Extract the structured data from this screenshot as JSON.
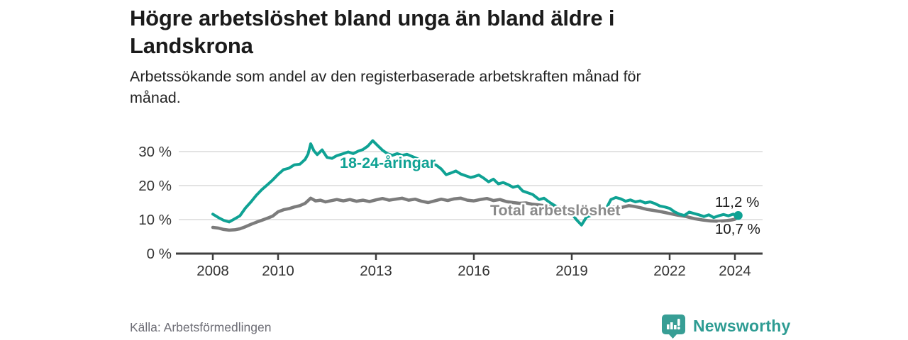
{
  "header": {
    "title_lines": [
      "Högre arbetslöshet bland unga än bland äldre i",
      "Landskrona"
    ],
    "subtitle_lines": [
      "Arbetssökande som andel av den registerbaserade arbetskraften månad för",
      "månad."
    ]
  },
  "footer": {
    "source": "Källa: Arbetsförmedlingen",
    "brand": "Newsworthy"
  },
  "colors": {
    "young_line": "#0fa294",
    "total_line": "#7c7c7c",
    "total_label": "#8a8a8a",
    "brand_teal": "#2f9c93",
    "grid": "#dadada",
    "axis": "#3f3f3f",
    "tick_text": "#333333",
    "end_label_text": "#1b1b1b"
  },
  "chart_data": {
    "type": "line",
    "title": "Högre arbetslöshet bland unga än bland äldre i Landskrona",
    "subtitle": "Arbetssökande som andel av den registerbaserade arbetskraften månad för månad.",
    "xlabel": "",
    "ylabel": "",
    "x_ticks": [
      2008,
      2010,
      2013,
      2016,
      2019,
      2022,
      2024
    ],
    "y_ticks": [
      0,
      10,
      20,
      30
    ],
    "y_tick_suffix": " %",
    "xlim": [
      2006.9,
      2024.9
    ],
    "ylim": [
      0,
      34.5
    ],
    "grid": true,
    "legend_position": "inline",
    "series": [
      {
        "name": "18-24-åringar",
        "color": "#0fa294",
        "stroke_width": 4,
        "inline_label": {
          "text": "18-24-åringar",
          "px": [
            479,
            237
          ]
        },
        "end_label": {
          "text": "11,2 %",
          "px": [
            1008,
            292
          ]
        },
        "end_dot": true,
        "points": [
          [
            2008.0,
            11.6
          ],
          [
            2008.17,
            10.6
          ],
          [
            2008.33,
            9.8
          ],
          [
            2008.5,
            9.3
          ],
          [
            2008.67,
            10.2
          ],
          [
            2008.83,
            11.1
          ],
          [
            2009.0,
            13.4
          ],
          [
            2009.17,
            15.2
          ],
          [
            2009.33,
            17.1
          ],
          [
            2009.5,
            18.8
          ],
          [
            2009.67,
            20.2
          ],
          [
            2009.83,
            21.6
          ],
          [
            2010.0,
            23.3
          ],
          [
            2010.17,
            24.7
          ],
          [
            2010.33,
            25.1
          ],
          [
            2010.5,
            26.1
          ],
          [
            2010.67,
            26.3
          ],
          [
            2010.83,
            27.7
          ],
          [
            2010.92,
            29.3
          ],
          [
            2011.0,
            32.3
          ],
          [
            2011.1,
            30.2
          ],
          [
            2011.2,
            29.1
          ],
          [
            2011.35,
            30.5
          ],
          [
            2011.5,
            28.3
          ],
          [
            2011.65,
            28.0
          ],
          [
            2011.8,
            28.8
          ],
          [
            2012.0,
            29.4
          ],
          [
            2012.15,
            29.9
          ],
          [
            2012.3,
            29.4
          ],
          [
            2012.45,
            30.1
          ],
          [
            2012.6,
            30.6
          ],
          [
            2012.75,
            31.6
          ],
          [
            2012.9,
            33.2
          ],
          [
            2013.05,
            31.8
          ],
          [
            2013.2,
            30.4
          ],
          [
            2013.35,
            29.4
          ],
          [
            2013.5,
            28.9
          ],
          [
            2013.65,
            29.4
          ],
          [
            2013.8,
            28.9
          ],
          [
            2013.95,
            29.2
          ],
          [
            2014.1,
            28.6
          ],
          [
            2014.3,
            27.8
          ],
          [
            2014.5,
            27.1
          ],
          [
            2014.7,
            26.4
          ],
          [
            2014.85,
            26.0
          ],
          [
            2015.0,
            24.9
          ],
          [
            2015.15,
            23.2
          ],
          [
            2015.3,
            23.7
          ],
          [
            2015.45,
            24.3
          ],
          [
            2015.6,
            23.4
          ],
          [
            2015.75,
            22.9
          ],
          [
            2015.9,
            22.4
          ],
          [
            2016.0,
            22.6
          ],
          [
            2016.15,
            23.1
          ],
          [
            2016.3,
            22.2
          ],
          [
            2016.45,
            21.1
          ],
          [
            2016.6,
            21.9
          ],
          [
            2016.75,
            20.5
          ],
          [
            2016.9,
            20.9
          ],
          [
            2017.05,
            20.3
          ],
          [
            2017.2,
            19.5
          ],
          [
            2017.35,
            19.9
          ],
          [
            2017.5,
            18.4
          ],
          [
            2017.65,
            17.9
          ],
          [
            2017.8,
            17.4
          ],
          [
            2018.0,
            15.9
          ],
          [
            2018.15,
            16.3
          ],
          [
            2018.3,
            15.2
          ],
          [
            2018.45,
            14.3
          ],
          [
            2018.6,
            13.5
          ],
          [
            2018.8,
            12.7
          ],
          [
            2019.0,
            11.7
          ],
          [
            2019.15,
            9.9
          ],
          [
            2019.3,
            8.4
          ],
          [
            2019.45,
            10.7
          ],
          [
            2019.6,
            11.3
          ],
          [
            2019.75,
            11.9
          ],
          [
            2019.9,
            12.4
          ],
          [
            2020.05,
            13.1
          ],
          [
            2020.2,
            15.9
          ],
          [
            2020.35,
            16.5
          ],
          [
            2020.5,
            16.1
          ],
          [
            2020.65,
            15.4
          ],
          [
            2020.8,
            15.8
          ],
          [
            2020.95,
            15.2
          ],
          [
            2021.1,
            15.5
          ],
          [
            2021.25,
            14.9
          ],
          [
            2021.4,
            15.2
          ],
          [
            2021.55,
            14.7
          ],
          [
            2021.7,
            14.0
          ],
          [
            2021.85,
            13.7
          ],
          [
            2022.0,
            13.3
          ],
          [
            2022.15,
            12.3
          ],
          [
            2022.3,
            11.6
          ],
          [
            2022.45,
            11.2
          ],
          [
            2022.6,
            12.2
          ],
          [
            2022.75,
            11.8
          ],
          [
            2022.9,
            11.4
          ],
          [
            2023.05,
            10.9
          ],
          [
            2023.2,
            11.4
          ],
          [
            2023.35,
            10.6
          ],
          [
            2023.5,
            11.1
          ],
          [
            2023.65,
            11.5
          ],
          [
            2023.8,
            11.1
          ],
          [
            2023.95,
            11.6
          ],
          [
            2024.05,
            11.0
          ],
          [
            2024.1,
            11.2
          ]
        ]
      },
      {
        "name": "Total arbetslöshet",
        "color": "#7c7c7c",
        "stroke_width": 4.5,
        "inline_label": {
          "text": "Total arbetslöshet",
          "px": [
            691,
            304
          ]
        },
        "end_label": {
          "text": "10,7 %",
          "px": [
            1008,
            330
          ]
        },
        "end_dot": false,
        "points": [
          [
            2008.0,
            7.7
          ],
          [
            2008.17,
            7.5
          ],
          [
            2008.33,
            7.1
          ],
          [
            2008.5,
            6.9
          ],
          [
            2008.67,
            7.0
          ],
          [
            2008.83,
            7.3
          ],
          [
            2009.0,
            7.9
          ],
          [
            2009.17,
            8.6
          ],
          [
            2009.33,
            9.2
          ],
          [
            2009.5,
            9.8
          ],
          [
            2009.67,
            10.4
          ],
          [
            2009.83,
            11.0
          ],
          [
            2010.0,
            12.3
          ],
          [
            2010.17,
            12.9
          ],
          [
            2010.33,
            13.2
          ],
          [
            2010.5,
            13.7
          ],
          [
            2010.67,
            14.1
          ],
          [
            2010.83,
            14.8
          ],
          [
            2011.0,
            16.3
          ],
          [
            2011.15,
            15.5
          ],
          [
            2011.3,
            15.7
          ],
          [
            2011.45,
            15.2
          ],
          [
            2011.6,
            15.5
          ],
          [
            2011.8,
            15.9
          ],
          [
            2012.0,
            15.5
          ],
          [
            2012.2,
            15.9
          ],
          [
            2012.4,
            15.4
          ],
          [
            2012.6,
            15.7
          ],
          [
            2012.8,
            15.3
          ],
          [
            2013.0,
            15.8
          ],
          [
            2013.2,
            16.2
          ],
          [
            2013.4,
            15.7
          ],
          [
            2013.6,
            16.0
          ],
          [
            2013.8,
            16.3
          ],
          [
            2014.0,
            15.7
          ],
          [
            2014.2,
            16.0
          ],
          [
            2014.4,
            15.4
          ],
          [
            2014.6,
            15.0
          ],
          [
            2014.8,
            15.5
          ],
          [
            2015.0,
            16.0
          ],
          [
            2015.2,
            15.6
          ],
          [
            2015.4,
            16.1
          ],
          [
            2015.6,
            16.3
          ],
          [
            2015.8,
            15.7
          ],
          [
            2016.0,
            15.5
          ],
          [
            2016.2,
            15.9
          ],
          [
            2016.4,
            16.2
          ],
          [
            2016.6,
            15.6
          ],
          [
            2016.8,
            15.9
          ],
          [
            2017.0,
            15.3
          ],
          [
            2017.2,
            15.0
          ],
          [
            2017.4,
            14.8
          ],
          [
            2017.6,
            14.9
          ],
          [
            2017.8,
            14.5
          ],
          [
            2018.0,
            14.3
          ],
          [
            2018.25,
            14.0
          ],
          [
            2018.5,
            13.7
          ],
          [
            2018.75,
            13.5
          ],
          [
            2019.0,
            13.3
          ],
          [
            2019.25,
            13.0
          ],
          [
            2019.5,
            13.1
          ],
          [
            2019.75,
            13.2
          ],
          [
            2020.0,
            13.4
          ],
          [
            2020.25,
            13.7
          ],
          [
            2020.5,
            13.5
          ],
          [
            2020.75,
            14.1
          ],
          [
            2020.9,
            13.9
          ],
          [
            2021.1,
            13.5
          ],
          [
            2021.3,
            13.0
          ],
          [
            2021.5,
            12.7
          ],
          [
            2021.75,
            12.3
          ],
          [
            2022.0,
            11.8
          ],
          [
            2022.25,
            11.3
          ],
          [
            2022.5,
            10.9
          ],
          [
            2022.75,
            10.3
          ],
          [
            2023.0,
            9.9
          ],
          [
            2023.25,
            9.6
          ],
          [
            2023.5,
            9.5
          ],
          [
            2023.75,
            9.7
          ],
          [
            2023.9,
            9.9
          ],
          [
            2024.0,
            10.1
          ],
          [
            2024.1,
            10.7
          ]
        ]
      }
    ]
  }
}
